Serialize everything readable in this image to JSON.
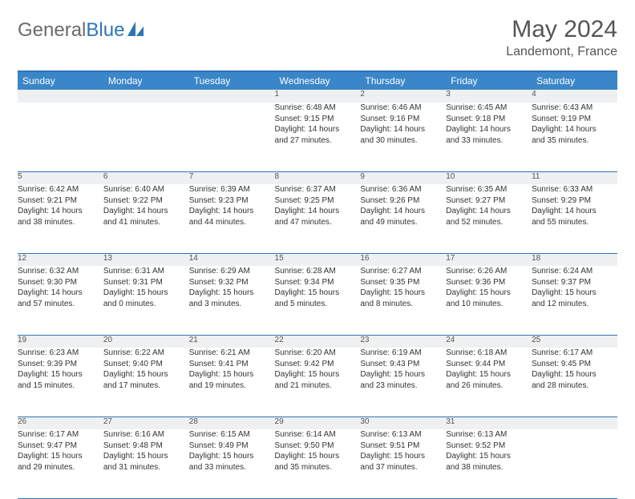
{
  "logo": {
    "text1": "General",
    "text2": "Blue"
  },
  "title": "May 2024",
  "location": "Landemont, France",
  "colors": {
    "header_bg": "#3a86c8",
    "header_border": "#2e74b5",
    "daynum_bg": "#eef0f2",
    "text": "#333333",
    "title_text": "#555555",
    "logo_gray": "#6a6a6a",
    "logo_blue": "#2e74b5"
  },
  "days_of_week": [
    "Sunday",
    "Monday",
    "Tuesday",
    "Wednesday",
    "Thursday",
    "Friday",
    "Saturday"
  ],
  "weeks": [
    [
      {
        "n": "",
        "l1": "",
        "l2": "",
        "l3": "",
        "l4": ""
      },
      {
        "n": "",
        "l1": "",
        "l2": "",
        "l3": "",
        "l4": ""
      },
      {
        "n": "",
        "l1": "",
        "l2": "",
        "l3": "",
        "l4": ""
      },
      {
        "n": "1",
        "l1": "Sunrise: 6:48 AM",
        "l2": "Sunset: 9:15 PM",
        "l3": "Daylight: 14 hours",
        "l4": "and 27 minutes."
      },
      {
        "n": "2",
        "l1": "Sunrise: 6:46 AM",
        "l2": "Sunset: 9:16 PM",
        "l3": "Daylight: 14 hours",
        "l4": "and 30 minutes."
      },
      {
        "n": "3",
        "l1": "Sunrise: 6:45 AM",
        "l2": "Sunset: 9:18 PM",
        "l3": "Daylight: 14 hours",
        "l4": "and 33 minutes."
      },
      {
        "n": "4",
        "l1": "Sunrise: 6:43 AM",
        "l2": "Sunset: 9:19 PM",
        "l3": "Daylight: 14 hours",
        "l4": "and 35 minutes."
      }
    ],
    [
      {
        "n": "5",
        "l1": "Sunrise: 6:42 AM",
        "l2": "Sunset: 9:21 PM",
        "l3": "Daylight: 14 hours",
        "l4": "and 38 minutes."
      },
      {
        "n": "6",
        "l1": "Sunrise: 6:40 AM",
        "l2": "Sunset: 9:22 PM",
        "l3": "Daylight: 14 hours",
        "l4": "and 41 minutes."
      },
      {
        "n": "7",
        "l1": "Sunrise: 6:39 AM",
        "l2": "Sunset: 9:23 PM",
        "l3": "Daylight: 14 hours",
        "l4": "and 44 minutes."
      },
      {
        "n": "8",
        "l1": "Sunrise: 6:37 AM",
        "l2": "Sunset: 9:25 PM",
        "l3": "Daylight: 14 hours",
        "l4": "and 47 minutes."
      },
      {
        "n": "9",
        "l1": "Sunrise: 6:36 AM",
        "l2": "Sunset: 9:26 PM",
        "l3": "Daylight: 14 hours",
        "l4": "and 49 minutes."
      },
      {
        "n": "10",
        "l1": "Sunrise: 6:35 AM",
        "l2": "Sunset: 9:27 PM",
        "l3": "Daylight: 14 hours",
        "l4": "and 52 minutes."
      },
      {
        "n": "11",
        "l1": "Sunrise: 6:33 AM",
        "l2": "Sunset: 9:29 PM",
        "l3": "Daylight: 14 hours",
        "l4": "and 55 minutes."
      }
    ],
    [
      {
        "n": "12",
        "l1": "Sunrise: 6:32 AM",
        "l2": "Sunset: 9:30 PM",
        "l3": "Daylight: 14 hours",
        "l4": "and 57 minutes."
      },
      {
        "n": "13",
        "l1": "Sunrise: 6:31 AM",
        "l2": "Sunset: 9:31 PM",
        "l3": "Daylight: 15 hours",
        "l4": "and 0 minutes."
      },
      {
        "n": "14",
        "l1": "Sunrise: 6:29 AM",
        "l2": "Sunset: 9:32 PM",
        "l3": "Daylight: 15 hours",
        "l4": "and 3 minutes."
      },
      {
        "n": "15",
        "l1": "Sunrise: 6:28 AM",
        "l2": "Sunset: 9:34 PM",
        "l3": "Daylight: 15 hours",
        "l4": "and 5 minutes."
      },
      {
        "n": "16",
        "l1": "Sunrise: 6:27 AM",
        "l2": "Sunset: 9:35 PM",
        "l3": "Daylight: 15 hours",
        "l4": "and 8 minutes."
      },
      {
        "n": "17",
        "l1": "Sunrise: 6:26 AM",
        "l2": "Sunset: 9:36 PM",
        "l3": "Daylight: 15 hours",
        "l4": "and 10 minutes."
      },
      {
        "n": "18",
        "l1": "Sunrise: 6:24 AM",
        "l2": "Sunset: 9:37 PM",
        "l3": "Daylight: 15 hours",
        "l4": "and 12 minutes."
      }
    ],
    [
      {
        "n": "19",
        "l1": "Sunrise: 6:23 AM",
        "l2": "Sunset: 9:39 PM",
        "l3": "Daylight: 15 hours",
        "l4": "and 15 minutes."
      },
      {
        "n": "20",
        "l1": "Sunrise: 6:22 AM",
        "l2": "Sunset: 9:40 PM",
        "l3": "Daylight: 15 hours",
        "l4": "and 17 minutes."
      },
      {
        "n": "21",
        "l1": "Sunrise: 6:21 AM",
        "l2": "Sunset: 9:41 PM",
        "l3": "Daylight: 15 hours",
        "l4": "and 19 minutes."
      },
      {
        "n": "22",
        "l1": "Sunrise: 6:20 AM",
        "l2": "Sunset: 9:42 PM",
        "l3": "Daylight: 15 hours",
        "l4": "and 21 minutes."
      },
      {
        "n": "23",
        "l1": "Sunrise: 6:19 AM",
        "l2": "Sunset: 9:43 PM",
        "l3": "Daylight: 15 hours",
        "l4": "and 23 minutes."
      },
      {
        "n": "24",
        "l1": "Sunrise: 6:18 AM",
        "l2": "Sunset: 9:44 PM",
        "l3": "Daylight: 15 hours",
        "l4": "and 26 minutes."
      },
      {
        "n": "25",
        "l1": "Sunrise: 6:17 AM",
        "l2": "Sunset: 9:45 PM",
        "l3": "Daylight: 15 hours",
        "l4": "and 28 minutes."
      }
    ],
    [
      {
        "n": "26",
        "l1": "Sunrise: 6:17 AM",
        "l2": "Sunset: 9:47 PM",
        "l3": "Daylight: 15 hours",
        "l4": "and 29 minutes."
      },
      {
        "n": "27",
        "l1": "Sunrise: 6:16 AM",
        "l2": "Sunset: 9:48 PM",
        "l3": "Daylight: 15 hours",
        "l4": "and 31 minutes."
      },
      {
        "n": "28",
        "l1": "Sunrise: 6:15 AM",
        "l2": "Sunset: 9:49 PM",
        "l3": "Daylight: 15 hours",
        "l4": "and 33 minutes."
      },
      {
        "n": "29",
        "l1": "Sunrise: 6:14 AM",
        "l2": "Sunset: 9:50 PM",
        "l3": "Daylight: 15 hours",
        "l4": "and 35 minutes."
      },
      {
        "n": "30",
        "l1": "Sunrise: 6:13 AM",
        "l2": "Sunset: 9:51 PM",
        "l3": "Daylight: 15 hours",
        "l4": "and 37 minutes."
      },
      {
        "n": "31",
        "l1": "Sunrise: 6:13 AM",
        "l2": "Sunset: 9:52 PM",
        "l3": "Daylight: 15 hours",
        "l4": "and 38 minutes."
      },
      {
        "n": "",
        "l1": "",
        "l2": "",
        "l3": "",
        "l4": ""
      }
    ]
  ]
}
